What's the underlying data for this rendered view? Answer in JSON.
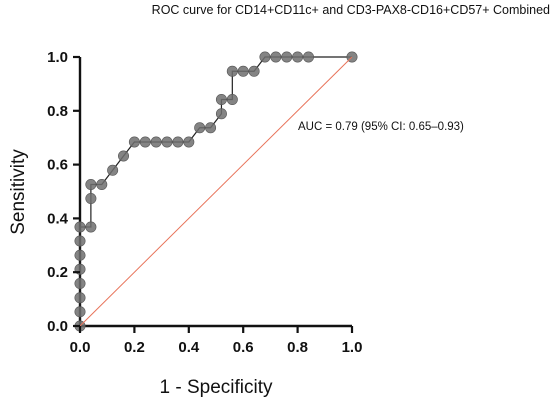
{
  "chart_data": {
    "type": "line",
    "title": "ROC curve for CD14+CD11c+ and CD3-PAX8-CD16+CD57+ Combined",
    "xlabel": "1 - Specificity",
    "ylabel": "Sensitivity",
    "xlim": [
      0,
      1
    ],
    "ylim": [
      0,
      1
    ],
    "xticks": [
      "0.0",
      "0.2",
      "0.4",
      "0.6",
      "0.8",
      "1.0"
    ],
    "yticks": [
      "0.0",
      "0.2",
      "0.4",
      "0.6",
      "0.8",
      "1.0"
    ],
    "grid": false,
    "annotation": "AUC = 0.79 (95% CI: 0.65–0.93)",
    "series": [
      {
        "values_x": [
          0,
          0,
          0,
          0,
          0,
          0,
          0,
          0,
          0.04,
          0.04,
          0.04,
          0.08,
          0.12,
          0.16,
          0.2,
          0.24,
          0.28,
          0.32,
          0.36,
          0.4,
          0.44,
          0.48,
          0.52,
          0.52,
          0.56,
          0.56,
          0.6,
          0.64,
          0.68,
          0.72,
          0.76,
          0.8,
          0.84,
          1.0
        ],
        "values_y": [
          0,
          0.053,
          0.105,
          0.158,
          0.211,
          0.263,
          0.316,
          0.368,
          0.368,
          0.474,
          0.526,
          0.526,
          0.579,
          0.632,
          0.684,
          0.684,
          0.684,
          0.684,
          0.684,
          0.684,
          0.737,
          0.737,
          0.789,
          0.842,
          0.842,
          0.947,
          0.947,
          0.947,
          1.0,
          1.0,
          1.0,
          1.0,
          1.0,
          1.0
        ],
        "color": "#6f6f6f"
      },
      {
        "values_x": [
          0,
          1
        ],
        "values_y": [
          0,
          1
        ],
        "color": "#e8735a",
        "style": "reference"
      }
    ]
  }
}
